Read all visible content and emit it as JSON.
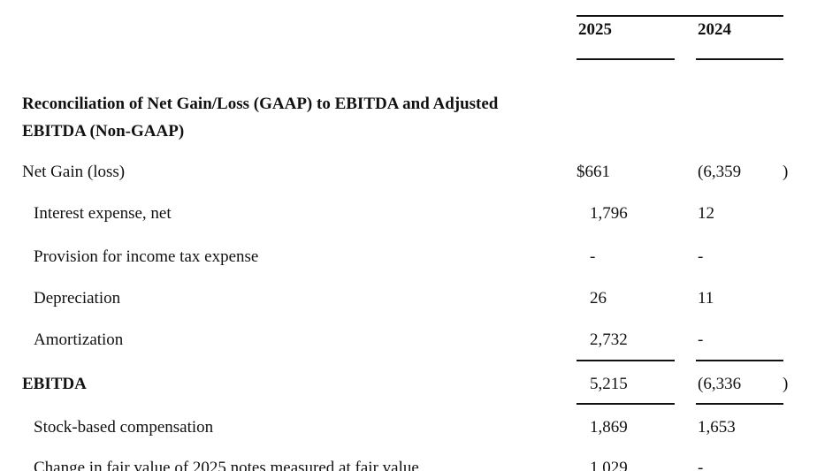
{
  "header": {
    "columns": [
      "2025",
      "2024"
    ]
  },
  "section": {
    "title": "Reconciliation of Net Gain/Loss (GAAP) to EBITDA and Adjusted EBITDA (Non-GAAP)"
  },
  "table": {
    "rows": [
      {
        "label": "Net Gain (loss)",
        "c2025": "$661",
        "c2024": "(6,359",
        "close": ")",
        "indent": false
      },
      {
        "label": "Interest expense, net",
        "c2025": "1,796",
        "c2024": "12",
        "indent": true
      },
      {
        "label": "Provision for income tax expense",
        "c2025": "-",
        "c2024": "-",
        "indent": true
      },
      {
        "label": "Depreciation",
        "c2025": "26",
        "c2024": "11",
        "indent": true
      },
      {
        "label": "Amortization",
        "c2025": "2,732",
        "c2024": "-",
        "indent": true
      },
      {
        "label": "EBITDA",
        "c2025": "5,215",
        "c2024": "(6,336",
        "close": ")",
        "indent": false,
        "bold": true,
        "rule_above": true
      },
      {
        "label": "Stock-based compensation",
        "c2025": "1,869",
        "c2024": "1,653",
        "indent": true,
        "rule_above": true
      },
      {
        "label": "Change in fair value of 2025 notes measured at fair value",
        "c2025": "1,029",
        "c2024": "-",
        "indent": true
      }
    ]
  }
}
